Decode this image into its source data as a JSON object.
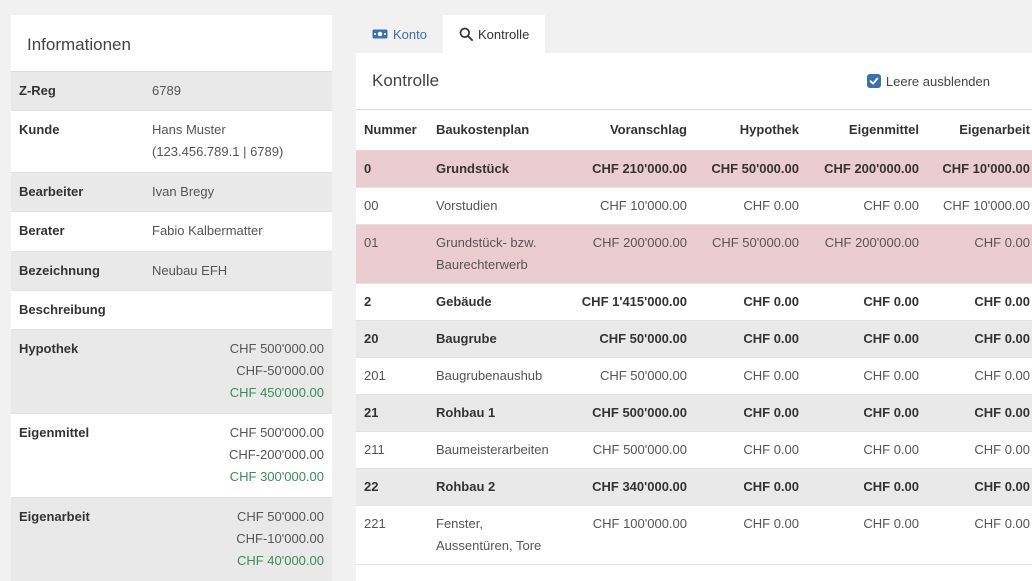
{
  "info": {
    "title": "Informationen",
    "rows": [
      {
        "key": "Z-Reg",
        "lines": [
          "6789"
        ],
        "money": false
      },
      {
        "key": "Kunde",
        "lines": [
          "Hans Muster",
          "(123.456.789.1 | 6789)"
        ],
        "money": false
      },
      {
        "key": "Bearbeiter",
        "lines": [
          "Ivan Bregy"
        ],
        "money": false
      },
      {
        "key": "Berater",
        "lines": [
          "Fabio Kalbermatter"
        ],
        "money": false
      },
      {
        "key": "Bezeichnung",
        "lines": [
          "Neubau EFH"
        ],
        "money": false
      },
      {
        "key": "Beschreibung",
        "lines": [
          ""
        ],
        "money": false
      },
      {
        "key": "Hypothek",
        "lines": [
          "CHF 500'000.00",
          "CHF-50'000.00",
          "CHF 450'000.00"
        ],
        "money": true
      },
      {
        "key": "Eigenmittel",
        "lines": [
          "CHF 500'000.00",
          "CHF-200'000.00",
          "CHF 300'000.00"
        ],
        "money": true
      },
      {
        "key": "Eigenarbeit",
        "lines": [
          "CHF 50'000.00",
          "CHF-10'000.00",
          "CHF 40'000.00"
        ],
        "money": true
      }
    ]
  },
  "tabs": [
    {
      "label": "Konto",
      "icon": "money-icon",
      "active": false
    },
    {
      "label": "Kontrolle",
      "icon": "search-icon",
      "active": true
    }
  ],
  "kontrolle": {
    "title": "Kontrolle",
    "checkbox_label": "Leere ausblenden",
    "checkbox_checked": true,
    "columns": [
      "Nummer",
      "Baukostenplan",
      "Voranschlag",
      "Hypothek",
      "Eigenmittel",
      "Eigenarbeit"
    ],
    "rows": [
      {
        "style": "pink bold",
        "cells": [
          "0",
          "Grundstück",
          "CHF 210'000.00",
          "CHF 50'000.00",
          "CHF 200'000.00",
          "CHF 10'000.00"
        ]
      },
      {
        "style": "",
        "cells": [
          "00",
          "Vorstudien",
          "CHF 10'000.00",
          "CHF 0.00",
          "CHF 0.00",
          "CHF 10'000.00"
        ]
      },
      {
        "style": "pink",
        "cells": [
          "01",
          "Grundstück- bzw. Baurechterwerb",
          "CHF 200'000.00",
          "CHF 50'000.00",
          "CHF 200'000.00",
          "CHF 0.00"
        ]
      },
      {
        "style": "bold",
        "cells": [
          "2",
          "Gebäude",
          "CHF 1'415'000.00",
          "CHF 0.00",
          "CHF 0.00",
          "CHF 0.00"
        ]
      },
      {
        "style": "gray bold",
        "cells": [
          "20",
          "Baugrube",
          "CHF 50'000.00",
          "CHF 0.00",
          "CHF 0.00",
          "CHF 0.00"
        ]
      },
      {
        "style": "",
        "cells": [
          "201",
          "Baugrubenaushub",
          "CHF 50'000.00",
          "CHF 0.00",
          "CHF 0.00",
          "CHF 0.00"
        ]
      },
      {
        "style": "gray bold",
        "cells": [
          "21",
          "Rohbau 1",
          "CHF 500'000.00",
          "CHF 0.00",
          "CHF 0.00",
          "CHF 0.00"
        ]
      },
      {
        "style": "",
        "cells": [
          "211",
          "Baumeisterarbeiten",
          "CHF 500'000.00",
          "CHF 0.00",
          "CHF 0.00",
          "CHF 0.00"
        ]
      },
      {
        "style": "gray bold",
        "cells": [
          "22",
          "Rohbau 2",
          "CHF 340'000.00",
          "CHF 0.00",
          "CHF 0.00",
          "CHF 0.00"
        ]
      },
      {
        "style": "",
        "cells": [
          "221",
          "Fenster, Aussentüren, Tore",
          "CHF 100'000.00",
          "CHF 0.00",
          "CHF 0.00",
          "CHF 0.00"
        ]
      }
    ]
  },
  "colors": {
    "accent": "#3a6fb0",
    "positive": "#3d8a5c",
    "highlight_row": "#ebcdd1",
    "group_row": "#e9e9e9"
  }
}
